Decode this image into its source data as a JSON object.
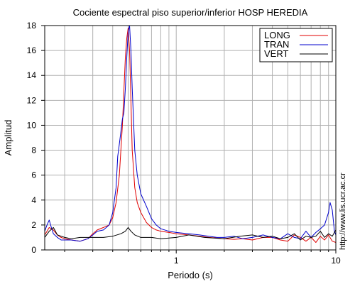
{
  "chart_data": {
    "type": "line",
    "title": "Cociente espectral piso superior/inferior  HOSP HEREDIA",
    "xlabel": "Periodo (s)",
    "ylabel": "Amplitud",
    "xscale": "log",
    "xlim": [
      0.15,
      10
    ],
    "ylim": [
      0,
      18
    ],
    "xticks": [
      1,
      10
    ],
    "xtick_labels": [
      "1",
      "10"
    ],
    "yticks": [
      0,
      2,
      4,
      6,
      8,
      10,
      12,
      14,
      16,
      18
    ],
    "ytick_labels": [
      "0",
      "2",
      "4",
      "6",
      "8",
      "10",
      "12",
      "14",
      "16",
      "18"
    ],
    "grid": true,
    "legend_position": "top-right",
    "footer_text": "http://www.lis.ucr.ac.cr",
    "series": [
      {
        "name": "LONG",
        "color": "#e00000",
        "x": [
          0.15,
          0.155,
          0.16,
          0.17,
          0.18,
          0.19,
          0.2,
          0.22,
          0.25,
          0.28,
          0.3,
          0.32,
          0.35,
          0.38,
          0.4,
          0.42,
          0.44,
          0.46,
          0.48,
          0.49,
          0.5,
          0.51,
          0.52,
          0.53,
          0.55,
          0.57,
          0.6,
          0.65,
          0.7,
          0.75,
          0.8,
          0.9,
          1.0,
          1.2,
          1.4,
          1.6,
          1.8,
          2.0,
          2.3,
          2.6,
          3.0,
          3.5,
          4.0,
          4.5,
          5.0,
          5.5,
          6.0,
          6.5,
          7.0,
          7.5,
          8.0,
          8.5,
          9.0,
          9.5,
          10.0
        ],
        "y": [
          1.2,
          1.5,
          1.8,
          1.6,
          1.2,
          1.0,
          0.9,
          0.8,
          0.7,
          0.9,
          1.3,
          1.6,
          1.8,
          2.0,
          2.6,
          3.8,
          6.0,
          10.0,
          15.5,
          17.0,
          17.8,
          16.0,
          12.0,
          8.0,
          5.0,
          3.8,
          3.0,
          2.2,
          1.8,
          1.6,
          1.5,
          1.4,
          1.3,
          1.2,
          1.1,
          1.0,
          0.95,
          0.9,
          0.85,
          0.9,
          0.8,
          1.0,
          1.0,
          0.8,
          0.7,
          1.2,
          1.0,
          0.7,
          1.0,
          0.6,
          1.1,
          0.8,
          1.2,
          0.7,
          0.6
        ]
      },
      {
        "name": "TRAN",
        "color": "#0000cc",
        "x": [
          0.15,
          0.155,
          0.16,
          0.165,
          0.17,
          0.18,
          0.19,
          0.2,
          0.22,
          0.25,
          0.28,
          0.3,
          0.32,
          0.35,
          0.38,
          0.4,
          0.42,
          0.43,
          0.44,
          0.45,
          0.46,
          0.47,
          0.48,
          0.49,
          0.5,
          0.51,
          0.52,
          0.53,
          0.55,
          0.57,
          0.6,
          0.65,
          0.7,
          0.75,
          0.8,
          0.9,
          1.0,
          1.2,
          1.4,
          1.6,
          1.8,
          2.0,
          2.3,
          2.6,
          3.0,
          3.5,
          4.0,
          4.5,
          5.0,
          5.5,
          6.0,
          6.5,
          7.0,
          7.5,
          8.0,
          8.5,
          9.0,
          9.2,
          9.5,
          9.8,
          10.0
        ],
        "y": [
          1.5,
          2.0,
          2.4,
          1.8,
          1.3,
          1.0,
          0.8,
          0.8,
          0.8,
          0.7,
          0.9,
          1.2,
          1.5,
          1.6,
          2.0,
          3.0,
          5.0,
          7.5,
          8.5,
          9.5,
          10.5,
          11.0,
          13.0,
          15.5,
          17.5,
          18.0,
          16.0,
          13.0,
          8.0,
          6.0,
          4.5,
          3.5,
          2.5,
          2.0,
          1.7,
          1.5,
          1.4,
          1.3,
          1.2,
          1.1,
          1.0,
          1.0,
          1.1,
          0.9,
          1.0,
          1.2,
          1.0,
          0.9,
          1.3,
          1.0,
          0.9,
          1.5,
          1.0,
          1.4,
          1.7,
          2.0,
          3.0,
          3.8,
          3.2,
          1.5,
          1.2
        ]
      },
      {
        "name": "VERT",
        "color": "#000000",
        "x": [
          0.15,
          0.16,
          0.17,
          0.18,
          0.19,
          0.2,
          0.22,
          0.25,
          0.28,
          0.3,
          0.35,
          0.4,
          0.45,
          0.48,
          0.5,
          0.52,
          0.55,
          0.6,
          0.7,
          0.8,
          1.0,
          1.2,
          1.5,
          2.0,
          2.5,
          3.0,
          3.5,
          4.0,
          4.5,
          5.0,
          5.5,
          6.0,
          6.5,
          7.0,
          7.5,
          8.0,
          8.5,
          9.0,
          9.5,
          10.0
        ],
        "y": [
          1.0,
          1.5,
          1.8,
          1.2,
          1.1,
          1.0,
          0.9,
          1.0,
          1.0,
          1.0,
          1.0,
          1.1,
          1.3,
          1.5,
          1.8,
          1.5,
          1.2,
          1.0,
          1.0,
          0.9,
          1.0,
          1.2,
          1.0,
          0.9,
          1.1,
          1.2,
          1.0,
          1.1,
          0.9,
          1.0,
          1.3,
          0.8,
          1.1,
          1.0,
          1.1,
          1.5,
          1.0,
          1.3,
          1.1,
          1.6
        ]
      }
    ]
  }
}
